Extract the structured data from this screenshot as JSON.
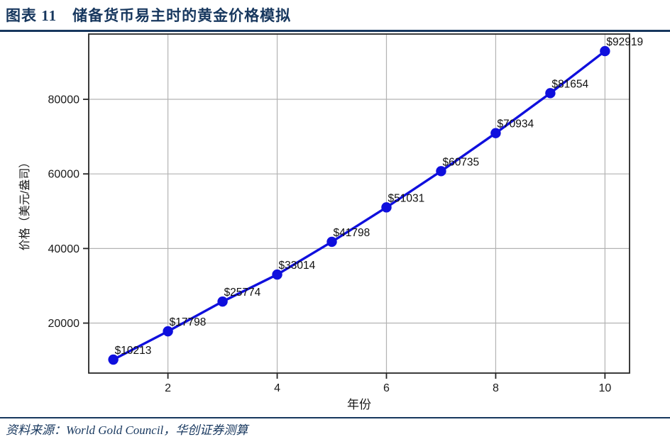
{
  "header": {
    "title": "图表 11　储备货币易主时的黄金价格模拟"
  },
  "footer": {
    "source": "资料来源：World Gold Council，华创证券测算"
  },
  "colors": {
    "accent_navy": "#17375e",
    "line_blue": "#0f0fdd",
    "grid_gray": "#b3b3b3",
    "plot_border": "#262626",
    "tick_text": "#1a1a1a"
  },
  "chart_data": {
    "type": "line",
    "title": "储备货币易主时的黄金价格模拟",
    "x": [
      1,
      2,
      3,
      4,
      5,
      6,
      7,
      8,
      9,
      10
    ],
    "values": [
      10213,
      17798,
      25774,
      33014,
      41798,
      51031,
      60735,
      70934,
      81654,
      92919
    ],
    "point_labels": [
      "$10213",
      "$17798",
      "$25774",
      "$33014",
      "$41798",
      "$51031",
      "$60735",
      "$70934",
      "$81654",
      "$92919"
    ],
    "xlabel": "年份",
    "ylabel": "价格（美元/盎司）",
    "x_ticks": [
      2,
      4,
      6,
      8,
      10
    ],
    "y_ticks": [
      20000,
      40000,
      60000,
      80000
    ],
    "x_tick_labels": [
      "2",
      "4",
      "6",
      "8",
      "10"
    ],
    "y_tick_labels": [
      "20000",
      "40000",
      "60000",
      "80000"
    ],
    "xlim": [
      0.55,
      10.45
    ],
    "ylim": [
      6600,
      97500
    ],
    "grid": true,
    "legend": "none",
    "line_color": "#0f0fdd",
    "marker": "circle"
  }
}
